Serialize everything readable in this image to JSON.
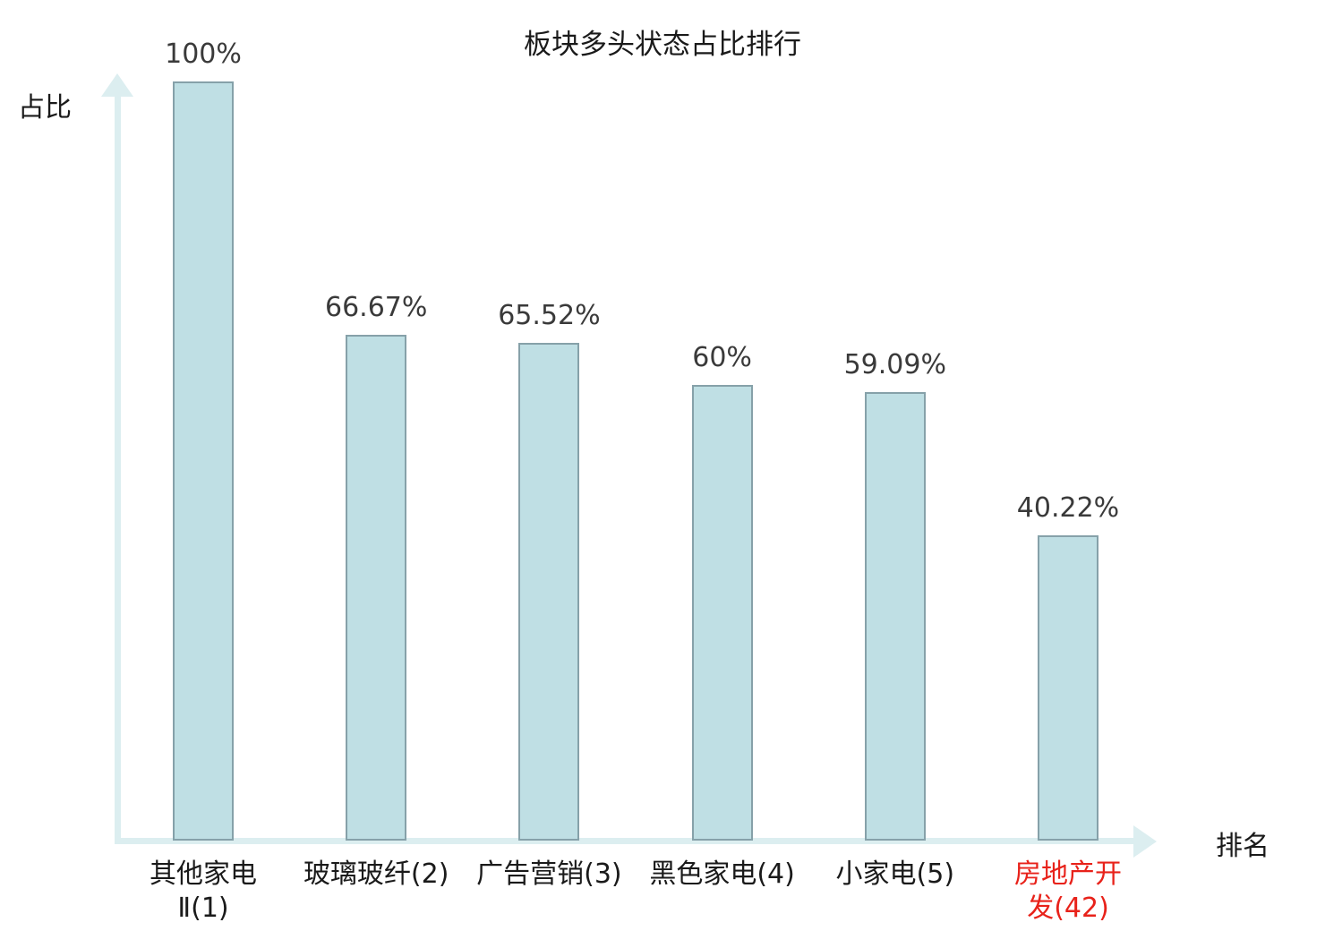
{
  "colors": {
    "bar_fill": "#bfdfe4",
    "bar_border": "#86a1a9",
    "axis": "#dceef0",
    "text": "#1a1a1a",
    "value_text": "#3a3a3a",
    "highlight": "#e8221a",
    "bg": "#ffffff"
  },
  "chart_data": {
    "type": "bar",
    "title": "板块多头状态占比排行",
    "xlabel": "排名",
    "ylabel": "占比",
    "ylim": [
      0,
      100
    ],
    "grid": false,
    "legend": false,
    "categories": [
      "其他家电Ⅱ(1)",
      "玻璃玻纤(2)",
      "广告营销(3)",
      "黑色家电(4)",
      "小家电(5)",
      "房地产开发(42)"
    ],
    "values": [
      100,
      66.67,
      65.52,
      60,
      59.09,
      40.22
    ],
    "value_labels": [
      "100%",
      "66.67%",
      "65.52%",
      "60%",
      "59.09%",
      "40.22%"
    ],
    "category_label_lines": [
      [
        "其他家电",
        "Ⅱ(1)"
      ],
      [
        "玻璃玻纤(2)"
      ],
      [
        "广告营销(3)"
      ],
      [
        "黑色家电(4)"
      ],
      [
        "小家电(5)"
      ],
      [
        "房地产开",
        "发(42)"
      ]
    ],
    "highlight_index": 5
  }
}
